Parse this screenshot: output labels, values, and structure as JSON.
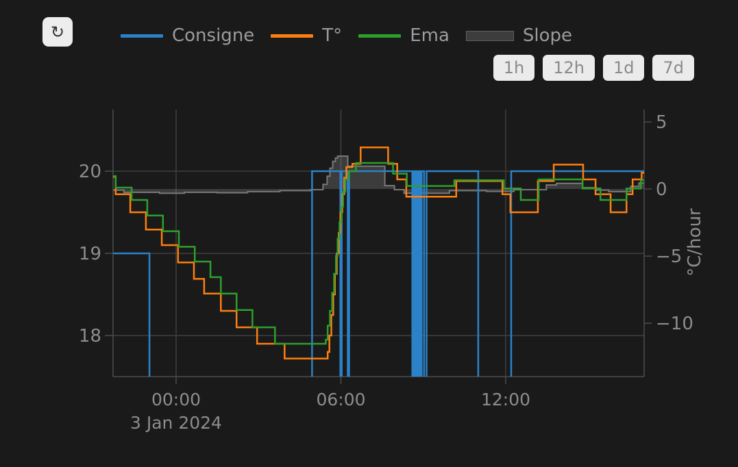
{
  "header": {
    "refresh_icon": "↻",
    "legend": [
      {
        "label": "Consigne",
        "color": "#2b82c9",
        "swatch": "line"
      },
      {
        "label": "T°",
        "color": "#ff7f0e",
        "swatch": "line"
      },
      {
        "label": "Ema",
        "color": "#2ca02c",
        "swatch": "line"
      },
      {
        "label": "Slope",
        "color": "#3d3d3d",
        "swatch": "bar"
      }
    ],
    "range_buttons": [
      {
        "label": "1h"
      },
      {
        "label": "12h"
      },
      {
        "label": "1d"
      },
      {
        "label": "7d"
      }
    ]
  },
  "chart_data": {
    "type": "line",
    "title": "",
    "x_axis": {
      "unit": "hours from 3 Jan 2024 00:00",
      "range": [
        -2.295,
        17.04
      ],
      "ticks": [
        {
          "t": 0,
          "label": "00:00"
        },
        {
          "t": 6,
          "label": "06:00"
        },
        {
          "t": 12,
          "label": "12:00"
        }
      ],
      "date_label": "3 Jan 2024",
      "grid": true
    },
    "y_left": {
      "unit": "°C",
      "range": [
        17.5,
        20.75
      ],
      "ticks": [
        {
          "v": 20,
          "label": "20"
        },
        {
          "v": 19,
          "label": "19"
        },
        {
          "v": 18,
          "label": "18"
        }
      ],
      "grid": true
    },
    "y_right": {
      "title": "°C/hour",
      "range": [
        -13.98,
        5.92
      ],
      "ticks": [
        {
          "v": 5,
          "label": "5"
        },
        {
          "v": 0,
          "label": "0"
        },
        {
          "v": -5,
          "label": "−5"
        },
        {
          "v": -10,
          "label": "−10"
        }
      ],
      "grid": false
    },
    "series": [
      {
        "name": "Slope",
        "axis": "right",
        "type": "step-area",
        "color": "#787878",
        "fill": "rgba(150,150,150,0.28)",
        "points": [
          [
            -2.295,
            -0.08
          ],
          [
            -1.9,
            -0.25
          ],
          [
            -0.6,
            -0.32
          ],
          [
            0.3,
            -0.25
          ],
          [
            1.5,
            -0.28
          ],
          [
            2.6,
            -0.2
          ],
          [
            3.78,
            -0.12
          ],
          [
            4.9,
            -0.05
          ],
          [
            5.35,
            0.35
          ],
          [
            5.5,
            0.95
          ],
          [
            5.6,
            1.55
          ],
          [
            5.7,
            2.05
          ],
          [
            5.8,
            2.3
          ],
          [
            5.88,
            2.45
          ],
          [
            6.25,
            1.7
          ],
          [
            7.6,
            0.25
          ],
          [
            7.95,
            -0.05
          ],
          [
            8.3,
            -0.32
          ],
          [
            9.95,
            -0.12
          ],
          [
            11.3,
            -0.18
          ],
          [
            12.3,
            -0.05
          ],
          [
            13.48,
            0.3
          ],
          [
            13.85,
            0.42
          ],
          [
            14.8,
            0.1
          ],
          [
            15.3,
            -0.08
          ],
          [
            15.75,
            -0.2
          ],
          [
            16.55,
            0.2
          ],
          [
            16.85,
            0.45
          ],
          [
            17.04,
            0.45
          ]
        ]
      },
      {
        "name": "Consigne",
        "axis": "left",
        "type": "step",
        "color": "#2b82c9",
        "points": [
          [
            -2.295,
            19
          ],
          [
            -0.97,
            17.4
          ],
          [
            4.95,
            20
          ],
          [
            5.98,
            17.4
          ],
          [
            6.03,
            20
          ],
          [
            6.25,
            17.4
          ],
          [
            6.3,
            20
          ],
          [
            8.6,
            17.4
          ],
          [
            8.64,
            20
          ],
          [
            8.7,
            17.4
          ],
          [
            8.74,
            20
          ],
          [
            8.8,
            17.4
          ],
          [
            8.84,
            20
          ],
          [
            8.9,
            17.4
          ],
          [
            8.94,
            20
          ],
          [
            9.03,
            17.4
          ],
          [
            9.12,
            20
          ],
          [
            11.0,
            17.4
          ],
          [
            12.2,
            20
          ],
          [
            17.04,
            20
          ]
        ]
      },
      {
        "name": "T°",
        "axis": "left",
        "type": "step",
        "color": "#ff7f0e",
        "points": [
          [
            -2.295,
            19.93
          ],
          [
            -2.2,
            19.72
          ],
          [
            -1.67,
            19.5
          ],
          [
            -1.1,
            19.29
          ],
          [
            -0.52,
            19.1
          ],
          [
            0.07,
            18.89
          ],
          [
            0.65,
            18.69
          ],
          [
            1.02,
            18.51
          ],
          [
            1.63,
            18.3
          ],
          [
            2.2,
            18.1
          ],
          [
            2.95,
            17.9
          ],
          [
            3.95,
            17.72
          ],
          [
            5.52,
            17.8
          ],
          [
            5.58,
            18.0
          ],
          [
            5.65,
            18.25
          ],
          [
            5.72,
            18.5
          ],
          [
            5.78,
            18.75
          ],
          [
            5.85,
            19.0
          ],
          [
            5.92,
            19.25
          ],
          [
            5.98,
            19.5
          ],
          [
            6.05,
            19.72
          ],
          [
            6.12,
            19.92
          ],
          [
            6.2,
            20.05
          ],
          [
            6.42,
            20.09
          ],
          [
            6.72,
            20.29
          ],
          [
            7.72,
            20.09
          ],
          [
            8.05,
            19.9
          ],
          [
            8.38,
            19.69
          ],
          [
            10.2,
            19.88
          ],
          [
            11.88,
            19.72
          ],
          [
            12.17,
            19.5
          ],
          [
            13.17,
            19.88
          ],
          [
            13.75,
            20.08
          ],
          [
            14.82,
            19.9
          ],
          [
            15.27,
            19.72
          ],
          [
            15.82,
            19.5
          ],
          [
            16.4,
            19.72
          ],
          [
            16.62,
            19.9
          ],
          [
            16.95,
            19.98
          ],
          [
            17.04,
            19.98
          ]
        ]
      },
      {
        "name": "Ema",
        "axis": "left",
        "type": "step",
        "color": "#2ca02c",
        "points": [
          [
            -2.295,
            19.94
          ],
          [
            -2.2,
            19.8
          ],
          [
            -1.62,
            19.65
          ],
          [
            -1.05,
            19.46
          ],
          [
            -0.48,
            19.27
          ],
          [
            0.1,
            19.08
          ],
          [
            0.68,
            18.9
          ],
          [
            1.25,
            18.71
          ],
          [
            1.63,
            18.51
          ],
          [
            2.2,
            18.31
          ],
          [
            2.78,
            18.1
          ],
          [
            3.6,
            17.9
          ],
          [
            5.45,
            17.95
          ],
          [
            5.52,
            18.12
          ],
          [
            5.6,
            18.3
          ],
          [
            5.68,
            18.52
          ],
          [
            5.75,
            18.75
          ],
          [
            5.82,
            18.97
          ],
          [
            5.88,
            19.18
          ],
          [
            5.95,
            19.38
          ],
          [
            6.02,
            19.57
          ],
          [
            6.08,
            19.75
          ],
          [
            6.16,
            19.9
          ],
          [
            6.28,
            20.0
          ],
          [
            6.55,
            20.1
          ],
          [
            7.9,
            19.97
          ],
          [
            8.4,
            19.82
          ],
          [
            10.13,
            19.89
          ],
          [
            11.93,
            19.79
          ],
          [
            12.55,
            19.65
          ],
          [
            13.2,
            19.9
          ],
          [
            14.8,
            19.79
          ],
          [
            15.45,
            19.65
          ],
          [
            16.4,
            19.79
          ],
          [
            16.92,
            19.89
          ],
          [
            17.04,
            19.89
          ]
        ]
      }
    ],
    "colors": {
      "background": "#1a1a1a",
      "grid": "#3f3f3f",
      "axis_line": "#4c4c4c",
      "tick_text": "#8d8d8d",
      "legend_text": "#9c9c9c"
    }
  }
}
